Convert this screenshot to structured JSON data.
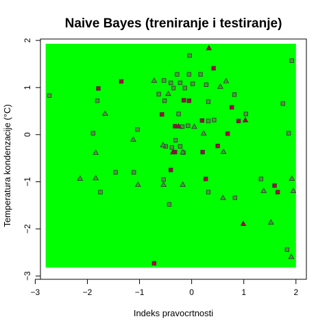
{
  "chart_data": {
    "type": "scatter",
    "title": "Naive Bayes (treniranje i testiranje)",
    "xlabel": "Indeks pravocrtnosti",
    "ylabel": "Temperatura kondenzacije (°C)",
    "xlim": [
      -2.9,
      2.2
    ],
    "ylim": [
      -3.07,
      2.03
    ],
    "xticks": [
      -3,
      -2,
      -1,
      0,
      1,
      2
    ],
    "yticks": [
      -3,
      -2,
      -1,
      0,
      1,
      2
    ],
    "grid": false,
    "region": {
      "x": [
        -2.8,
        2.0
      ],
      "y": [
        -2.82,
        1.93
      ],
      "color": "#00ff00"
    },
    "point_colors": {
      "class_a": "#b3003c",
      "class_b": "#4a9a3c"
    },
    "points": [
      {
        "x": -2.73,
        "y": 0.83,
        "shape": "square",
        "cls": "b"
      },
      {
        "x": -1.79,
        "y": 0.98,
        "shape": "square",
        "cls": "a"
      },
      {
        "x": -1.81,
        "y": 0.72,
        "shape": "square",
        "cls": "b"
      },
      {
        "x": -1.35,
        "y": 1.13,
        "shape": "square",
        "cls": "a"
      },
      {
        "x": -1.04,
        "y": 0.11,
        "shape": "square",
        "cls": "b"
      },
      {
        "x": -1.46,
        "y": -0.8,
        "shape": "square",
        "cls": "b"
      },
      {
        "x": -1.11,
        "y": -0.8,
        "shape": "square",
        "cls": "b"
      },
      {
        "x": -1.75,
        "y": -1.22,
        "shape": "square",
        "cls": "b"
      },
      {
        "x": -1.89,
        "y": 0.03,
        "shape": "square",
        "cls": "b"
      },
      {
        "x": -0.53,
        "y": 1.15,
        "shape": "square",
        "cls": "b"
      },
      {
        "x": -0.63,
        "y": 0.86,
        "shape": "square",
        "cls": "b"
      },
      {
        "x": -0.52,
        "y": 0.72,
        "shape": "square",
        "cls": "b"
      },
      {
        "x": -0.4,
        "y": 1.1,
        "shape": "square",
        "cls": "b"
      },
      {
        "x": -0.35,
        "y": 0.99,
        "shape": "square",
        "cls": "b"
      },
      {
        "x": -0.28,
        "y": 1.28,
        "shape": "square",
        "cls": "b"
      },
      {
        "x": -0.22,
        "y": 1.1,
        "shape": "square",
        "cls": "b"
      },
      {
        "x": -0.13,
        "y": 0.99,
        "shape": "square",
        "cls": "b"
      },
      {
        "x": -0.05,
        "y": 1.28,
        "shape": "square",
        "cls": "b"
      },
      {
        "x": 0.02,
        "y": 1.08,
        "shape": "square",
        "cls": "b"
      },
      {
        "x": 0.17,
        "y": 1.28,
        "shape": "square",
        "cls": "b"
      },
      {
        "x": 0.28,
        "y": 1.06,
        "shape": "square",
        "cls": "b"
      },
      {
        "x": -0.04,
        "y": 1.68,
        "shape": "square",
        "cls": "b"
      },
      {
        "x": 0.42,
        "y": 1.41,
        "shape": "square",
        "cls": "a"
      },
      {
        "x": -0.25,
        "y": 0.44,
        "shape": "square",
        "cls": "b"
      },
      {
        "x": -0.57,
        "y": 0.43,
        "shape": "square",
        "cls": "a"
      },
      {
        "x": -0.15,
        "y": 0.73,
        "shape": "square",
        "cls": "a"
      },
      {
        "x": -0.05,
        "y": 0.72,
        "shape": "square",
        "cls": "a"
      },
      {
        "x": -0.32,
        "y": 0.18,
        "shape": "square",
        "cls": "a"
      },
      {
        "x": -0.18,
        "y": 0.17,
        "shape": "square",
        "cls": "b"
      },
      {
        "x": -0.07,
        "y": 0.19,
        "shape": "square",
        "cls": "b"
      },
      {
        "x": 0.2,
        "y": 0.3,
        "shape": "square",
        "cls": "a"
      },
      {
        "x": 0.32,
        "y": 0.29,
        "shape": "square",
        "cls": "b"
      },
      {
        "x": 0.43,
        "y": 0.31,
        "shape": "square",
        "cls": "b"
      },
      {
        "x": 0.32,
        "y": 0.7,
        "shape": "square",
        "cls": "b"
      },
      {
        "x": 0.77,
        "y": 0.58,
        "shape": "square",
        "cls": "a"
      },
      {
        "x": 0.82,
        "y": 0.85,
        "shape": "square",
        "cls": "b"
      },
      {
        "x": 0.9,
        "y": 0.29,
        "shape": "square",
        "cls": "a"
      },
      {
        "x": 1.04,
        "y": 0.44,
        "shape": "square",
        "cls": "b"
      },
      {
        "x": 0.69,
        "y": 0.02,
        "shape": "square",
        "cls": "a"
      },
      {
        "x": -0.5,
        "y": -0.25,
        "shape": "square",
        "cls": "b"
      },
      {
        "x": -0.38,
        "y": -0.27,
        "shape": "square",
        "cls": "b"
      },
      {
        "x": -0.31,
        "y": -0.12,
        "shape": "square",
        "cls": "b"
      },
      {
        "x": -0.22,
        "y": -0.25,
        "shape": "square",
        "cls": "b"
      },
      {
        "x": -0.16,
        "y": -0.38,
        "shape": "square",
        "cls": "b"
      },
      {
        "x": -0.32,
        "y": -0.37,
        "shape": "square",
        "cls": "a"
      },
      {
        "x": 0.21,
        "y": -0.37,
        "shape": "square",
        "cls": "a"
      },
      {
        "x": 0.5,
        "y": -0.24,
        "shape": "square",
        "cls": "a"
      },
      {
        "x": -0.4,
        "y": -0.75,
        "shape": "square",
        "cls": "a"
      },
      {
        "x": -0.54,
        "y": -0.95,
        "shape": "square",
        "cls": "b"
      },
      {
        "x": -0.43,
        "y": -1.48,
        "shape": "square",
        "cls": "b"
      },
      {
        "x": 0.27,
        "y": -0.94,
        "shape": "square",
        "cls": "a"
      },
      {
        "x": 0.32,
        "y": -1.22,
        "shape": "square",
        "cls": "b"
      },
      {
        "x": 0.83,
        "y": -1.34,
        "shape": "square",
        "cls": "b"
      },
      {
        "x": 1.33,
        "y": -0.94,
        "shape": "square",
        "cls": "b"
      },
      {
        "x": 1.59,
        "y": -1.08,
        "shape": "square",
        "cls": "a"
      },
      {
        "x": 1.65,
        "y": -1.22,
        "shape": "square",
        "cls": "a"
      },
      {
        "x": 1.75,
        "y": 0.66,
        "shape": "square",
        "cls": "b"
      },
      {
        "x": 1.86,
        "y": 0.03,
        "shape": "square",
        "cls": "b"
      },
      {
        "x": 1.92,
        "y": 1.57,
        "shape": "square",
        "cls": "b"
      },
      {
        "x": 1.83,
        "y": -2.44,
        "shape": "square",
        "cls": "b"
      },
      {
        "x": -0.72,
        "y": -2.73,
        "shape": "square",
        "cls": "a"
      },
      {
        "x": 0.33,
        "y": 1.84,
        "shape": "triangle",
        "cls": "a"
      },
      {
        "x": -0.72,
        "y": 1.15,
        "shape": "triangle",
        "cls": "b"
      },
      {
        "x": 0.66,
        "y": 1.14,
        "shape": "triangle",
        "cls": "b"
      },
      {
        "x": 0.55,
        "y": 1.02,
        "shape": "triangle",
        "cls": "b"
      },
      {
        "x": -0.45,
        "y": 0.87,
        "shape": "triangle",
        "cls": "b"
      },
      {
        "x": -1.66,
        "y": 0.45,
        "shape": "triangle",
        "cls": "b"
      },
      {
        "x": -0.25,
        "y": 0.18,
        "shape": "triangle",
        "cls": "a"
      },
      {
        "x": 0.05,
        "y": 0.17,
        "shape": "triangle",
        "cls": "b"
      },
      {
        "x": 1.03,
        "y": 0.31,
        "shape": "triangle",
        "cls": "a"
      },
      {
        "x": 0.23,
        "y": 0.03,
        "shape": "triangle",
        "cls": "b"
      },
      {
        "x": -1.12,
        "y": -0.1,
        "shape": "triangle",
        "cls": "b"
      },
      {
        "x": -0.55,
        "y": -0.22,
        "shape": "triangle",
        "cls": "b"
      },
      {
        "x": -1.84,
        "y": -0.38,
        "shape": "triangle",
        "cls": "b"
      },
      {
        "x": -0.36,
        "y": -0.37,
        "shape": "triangle",
        "cls": "a"
      },
      {
        "x": -0.17,
        "y": -0.37,
        "shape": "triangle",
        "cls": "b"
      },
      {
        "x": 0.61,
        "y": -0.36,
        "shape": "triangle",
        "cls": "b"
      },
      {
        "x": -2.14,
        "y": -0.93,
        "shape": "triangle",
        "cls": "b"
      },
      {
        "x": -1.84,
        "y": -0.92,
        "shape": "triangle",
        "cls": "b"
      },
      {
        "x": -1.03,
        "y": -1.06,
        "shape": "triangle",
        "cls": "b"
      },
      {
        "x": -0.54,
        "y": -1.06,
        "shape": "triangle",
        "cls": "b"
      },
      {
        "x": -0.17,
        "y": -1.06,
        "shape": "triangle",
        "cls": "b"
      },
      {
        "x": 0.6,
        "y": -1.34,
        "shape": "triangle",
        "cls": "b"
      },
      {
        "x": 1.38,
        "y": -1.19,
        "shape": "triangle",
        "cls": "b"
      },
      {
        "x": 1.92,
        "y": -0.93,
        "shape": "triangle",
        "cls": "b"
      },
      {
        "x": 1.95,
        "y": -1.19,
        "shape": "triangle",
        "cls": "b"
      },
      {
        "x": 0.99,
        "y": -1.89,
        "shape": "triangle",
        "cls": "a"
      },
      {
        "x": 1.52,
        "y": -1.86,
        "shape": "triangle",
        "cls": "b"
      },
      {
        "x": 1.91,
        "y": -2.59,
        "shape": "triangle",
        "cls": "b"
      }
    ]
  }
}
